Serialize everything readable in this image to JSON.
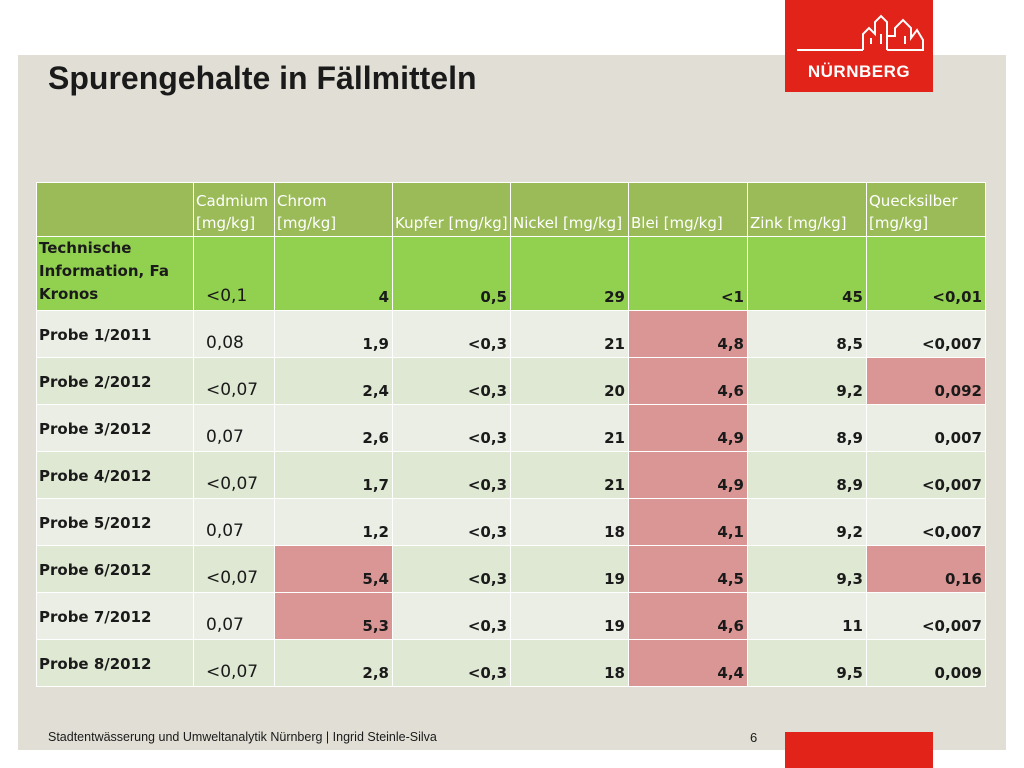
{
  "slide": {
    "title": "Spurengehalte in Fällmitteln",
    "page_number": "6",
    "footer": "Stadtentwässerung und Umweltanalytik Nürnberg  |  Ingrid Steinle-Silva"
  },
  "logo": {
    "text": "NÜRNBERG",
    "icon": "nuernberg-castle-icon",
    "color": "#e2231a"
  },
  "colors": {
    "header": "#9bbb59",
    "reference_row": "#92d050",
    "exceedance": "#d99694",
    "row_light": "#eaeee4",
    "row_green": "#dfe8d3"
  },
  "table": {
    "headers": [
      "",
      "Cadmium [mg/kg]",
      "Chrom [mg/kg]",
      "Kupfer [mg/kg]",
      "Nickel [mg/kg]",
      "Blei  [mg/kg]",
      "Zink [mg/kg]",
      "Quecksilber [mg/kg]"
    ],
    "reference": {
      "label": "Technische Information, Fa Kronos",
      "values": [
        "<0,1",
        "4",
        "0,5",
        "29",
        "<1",
        "45",
        "<0,01"
      ]
    },
    "rows": [
      {
        "label": "Probe 1/2011",
        "values": [
          "0,08",
          "1,9",
          "<0,3",
          "21",
          "4,8",
          "8,5",
          "<0,007"
        ],
        "exceeds": [
          false,
          false,
          false,
          false,
          true,
          false,
          false
        ]
      },
      {
        "label": "Probe 2/2012",
        "values": [
          "<0,07",
          "2,4",
          "<0,3",
          "20",
          "4,6",
          "9,2",
          "0,092"
        ],
        "exceeds": [
          false,
          false,
          false,
          false,
          true,
          false,
          true
        ]
      },
      {
        "label": "Probe 3/2012",
        "values": [
          "0,07",
          "2,6",
          "<0,3",
          "21",
          "4,9",
          "8,9",
          "0,007"
        ],
        "exceeds": [
          false,
          false,
          false,
          false,
          true,
          false,
          false
        ]
      },
      {
        "label": "Probe 4/2012",
        "values": [
          "<0,07",
          "1,7",
          "<0,3",
          "21",
          "4,9",
          "8,9",
          "<0,007"
        ],
        "exceeds": [
          false,
          false,
          false,
          false,
          true,
          false,
          false
        ]
      },
      {
        "label": "Probe 5/2012",
        "values": [
          "0,07",
          "1,2",
          "<0,3",
          "18",
          "4,1",
          "9,2",
          "<0,007"
        ],
        "exceeds": [
          false,
          false,
          false,
          false,
          true,
          false,
          false
        ]
      },
      {
        "label": "Probe 6/2012",
        "values": [
          "<0,07",
          "5,4",
          "<0,3",
          "19",
          "4,5",
          "9,3",
          "0,16"
        ],
        "exceeds": [
          false,
          true,
          false,
          false,
          true,
          false,
          true
        ]
      },
      {
        "label": "Probe 7/2012",
        "values": [
          "0,07",
          "5,3",
          "<0,3",
          "19",
          "4,6",
          "11",
          "<0,007"
        ],
        "exceeds": [
          false,
          true,
          false,
          false,
          true,
          false,
          false
        ]
      },
      {
        "label": "Probe 8/2012",
        "values": [
          "<0,07",
          "2,8",
          "<0,3",
          "18",
          "4,4",
          "9,5",
          "0,009"
        ],
        "exceeds": [
          false,
          false,
          false,
          false,
          true,
          false,
          false
        ]
      }
    ]
  }
}
